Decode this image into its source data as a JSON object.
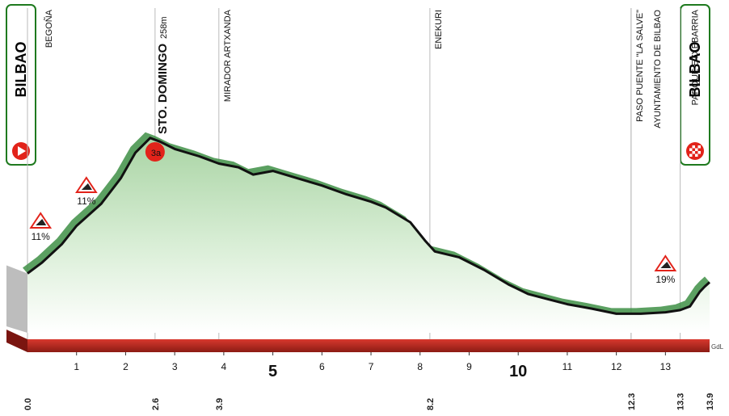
{
  "chart_data": {
    "type": "area",
    "title": "",
    "xlabel": "",
    "ylabel": "",
    "xlim": [
      0,
      13.9
    ],
    "ylim": [
      0,
      300
    ],
    "start_city": "BILBAO",
    "finish_city": "BILBAO",
    "distance_ticks": [
      {
        "km": 1,
        "label": "1",
        "big": false
      },
      {
        "km": 2,
        "label": "2",
        "big": false
      },
      {
        "km": 3,
        "label": "3",
        "big": false
      },
      {
        "km": 4,
        "label": "4",
        "big": false
      },
      {
        "km": 5,
        "label": "5",
        "big": true
      },
      {
        "km": 6,
        "label": "6",
        "big": false
      },
      {
        "km": 7,
        "label": "7",
        "big": false
      },
      {
        "km": 8,
        "label": "8",
        "big": false
      },
      {
        "km": 9,
        "label": "9",
        "big": false
      },
      {
        "km": 10,
        "label": "10",
        "big": true
      },
      {
        "km": 11,
        "label": "11",
        "big": false
      },
      {
        "km": 12,
        "label": "12",
        "big": false
      },
      {
        "km": 13,
        "label": "13",
        "big": false
      }
    ],
    "waypoints": [
      {
        "name": "BEGOÑA",
        "km": 0.0,
        "km_label": "0.0",
        "altitude_label": ""
      },
      {
        "name": "STO. DOMINGO",
        "km": 2.6,
        "km_label": "2.6",
        "altitude_label": "258m",
        "climb_category": "3a"
      },
      {
        "name": "MIRADOR ARTXANDA",
        "km": 3.9,
        "km_label": "3.9",
        "altitude_label": ""
      },
      {
        "name": "ENEKURI",
        "km": 8.2,
        "km_label": "8.2",
        "altitude_label": ""
      },
      {
        "name": "PASO PUENTE \"LA SALVE\"",
        "km": 12.3,
        "km_label": "12.3",
        "altitude_label": ""
      },
      {
        "name": "AYUNTAMIENTO DE BILBAO",
        "km": 12.3,
        "km_label": "",
        "altitude_label": ""
      },
      {
        "name": "PARQUE ETXEBARRIA",
        "km": 13.3,
        "km_label": "13.3",
        "altitude_label": ""
      },
      {
        "name": "",
        "km": 13.9,
        "km_label": "13.9",
        "altitude_label": ""
      }
    ],
    "gradients": [
      {
        "label": "11%",
        "km": 0.3
      },
      {
        "label": "11%",
        "km": 1.2
      },
      {
        "label": "19%",
        "km": 13.0
      }
    ],
    "profile": {
      "x": [
        0,
        0.3,
        0.7,
        1.0,
        1.5,
        1.9,
        2.2,
        2.5,
        2.7,
        3.0,
        3.5,
        3.9,
        4.3,
        4.6,
        5.0,
        5.5,
        6.0,
        6.5,
        7.0,
        7.3,
        7.8,
        8.1,
        8.3,
        8.8,
        9.3,
        9.8,
        10.2,
        10.6,
        11.0,
        11.5,
        12.0,
        12.5,
        13.0,
        13.3,
        13.5,
        13.7,
        13.8,
        13.9
      ],
      "altitude": [
        70,
        85,
        110,
        135,
        165,
        200,
        235,
        255,
        250,
        240,
        230,
        220,
        215,
        205,
        210,
        200,
        190,
        178,
        168,
        160,
        140,
        115,
        100,
        92,
        75,
        55,
        42,
        35,
        28,
        22,
        15,
        15,
        17,
        20,
        25,
        45,
        52,
        58
      ]
    },
    "axis_label": "GdL"
  }
}
